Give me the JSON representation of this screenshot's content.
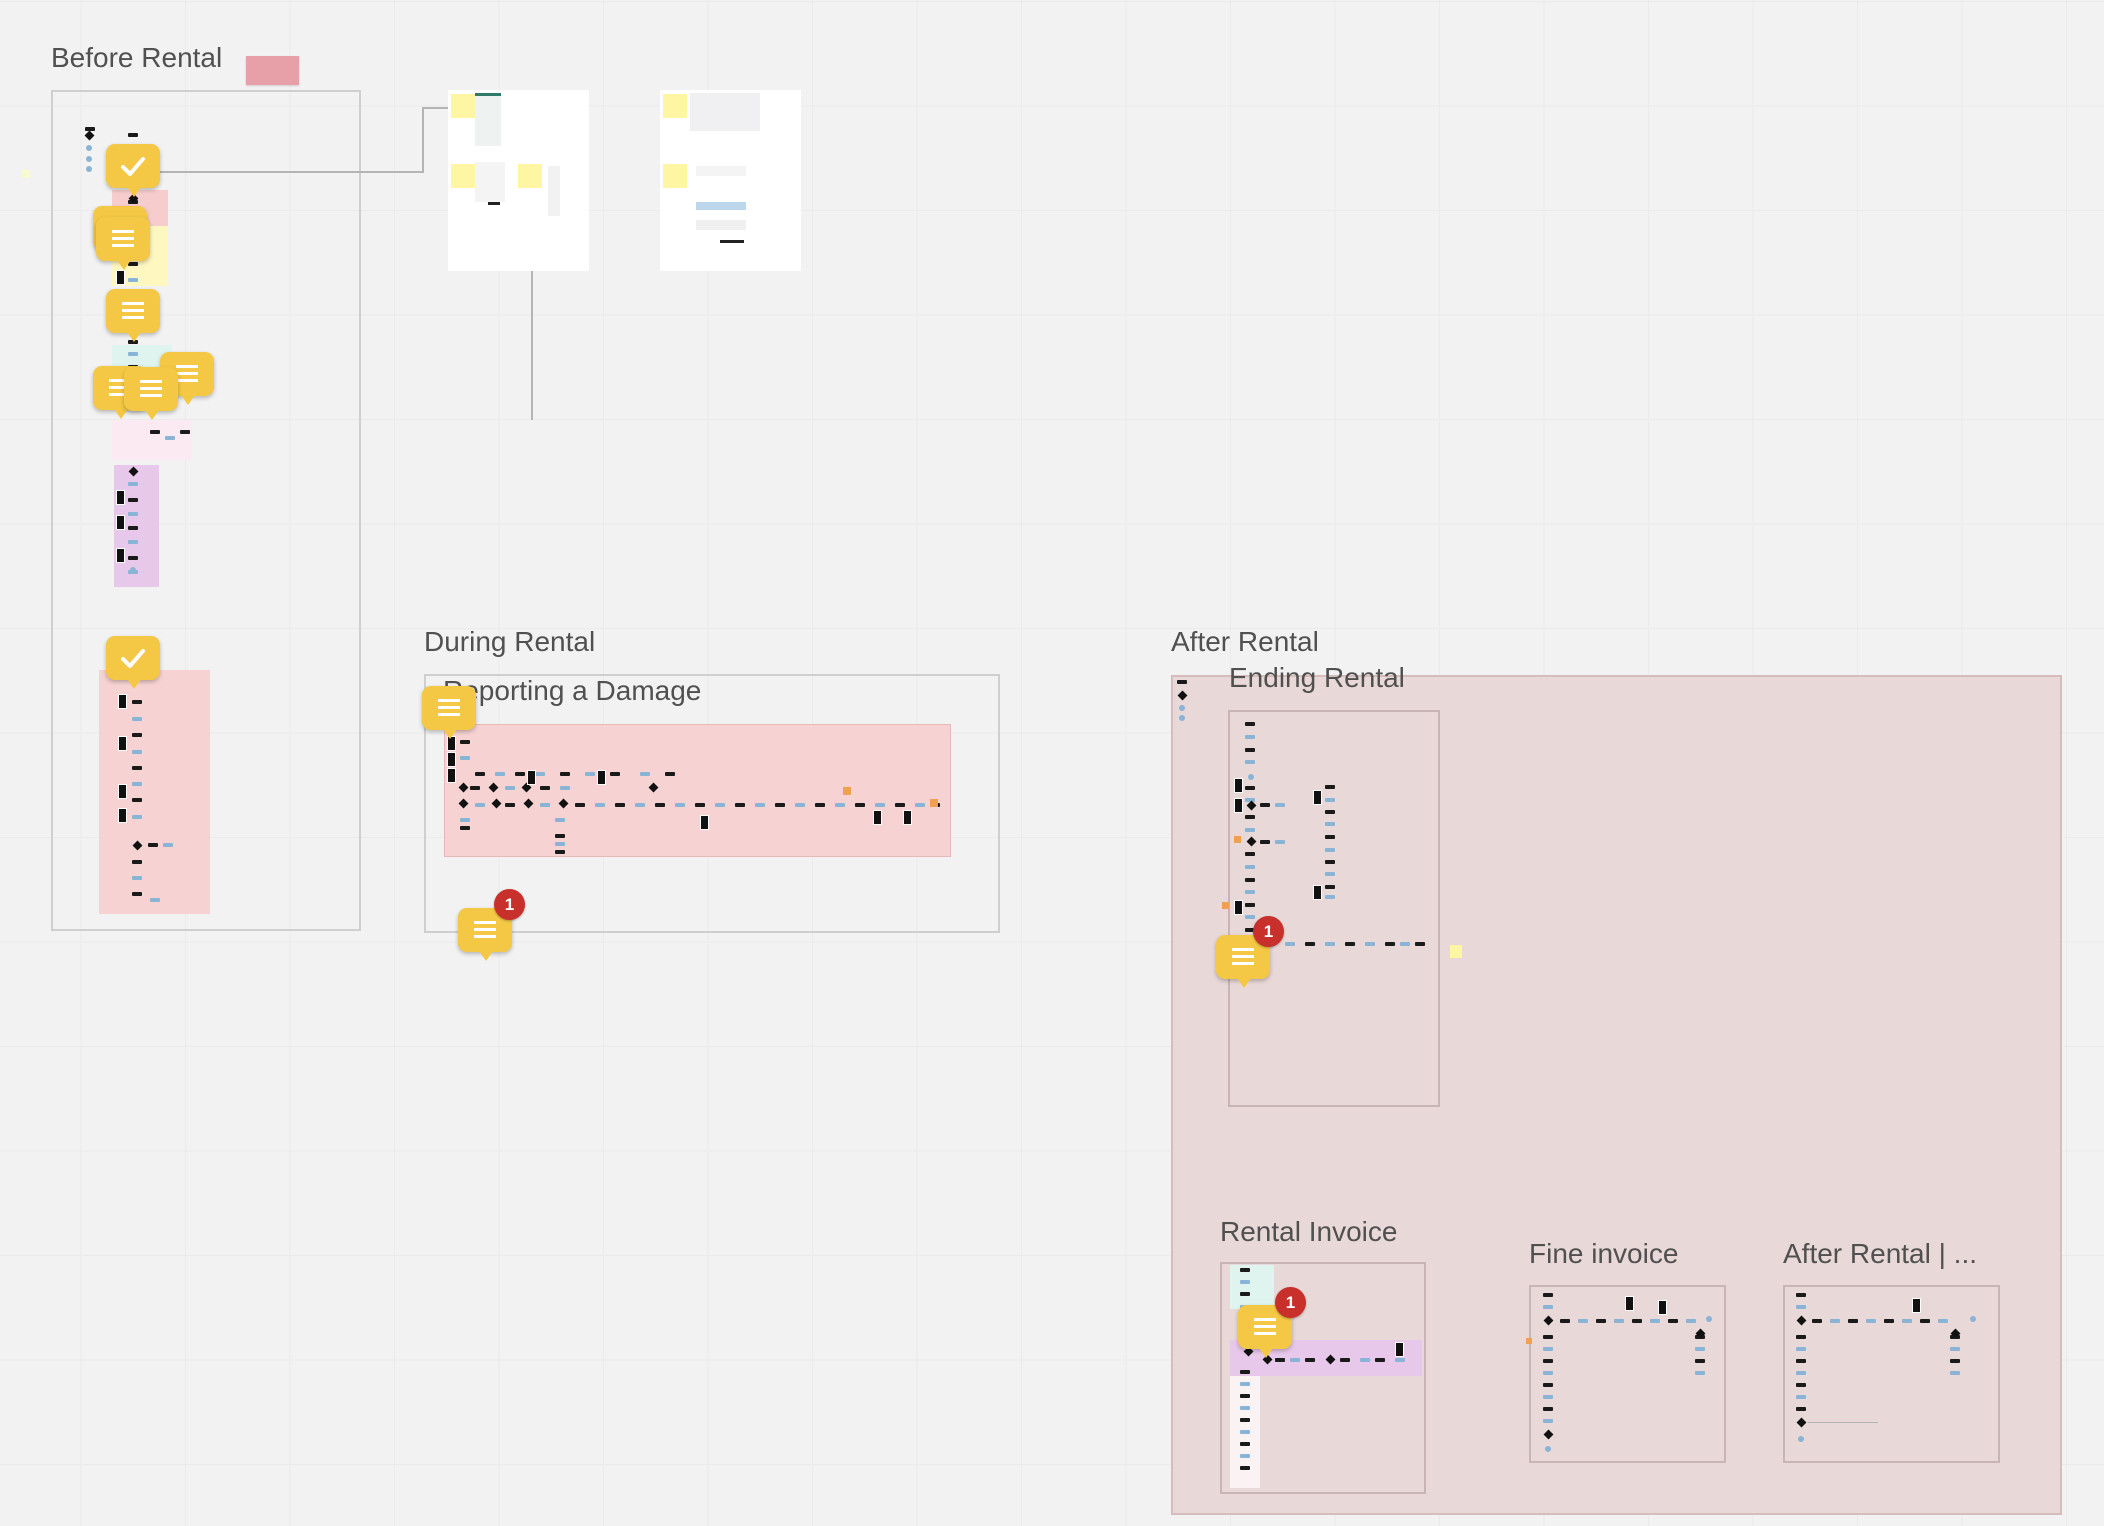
{
  "sections": {
    "before_rental": {
      "title": "Before Rental"
    },
    "during_rental": {
      "title": "During Rental",
      "subtitle": "Reporting a Damage"
    },
    "after_rental": {
      "title": "After Rental"
    },
    "ending_rental": {
      "title": "Ending Rental"
    },
    "rental_invoice": {
      "title": "Rental Invoice"
    },
    "fine_invoice": {
      "title": "Fine invoice"
    },
    "after_rental_more": {
      "title": "After Rental | ..."
    }
  },
  "comment_badges": {
    "during": "1",
    "ending": "1",
    "invoice": "1"
  },
  "icons": {
    "comment": "comment-bubble-icon",
    "resolved": "resolved-check-icon"
  },
  "colors": {
    "canvas": "#f2f2f2",
    "bubble": "#f4c844",
    "badge": "#c8302c",
    "pink_band": "#f7d2d2",
    "purple_band": "#e8c8ea",
    "after_rental_area": "#e9d8d8",
    "sticky": "#fff6a3"
  }
}
